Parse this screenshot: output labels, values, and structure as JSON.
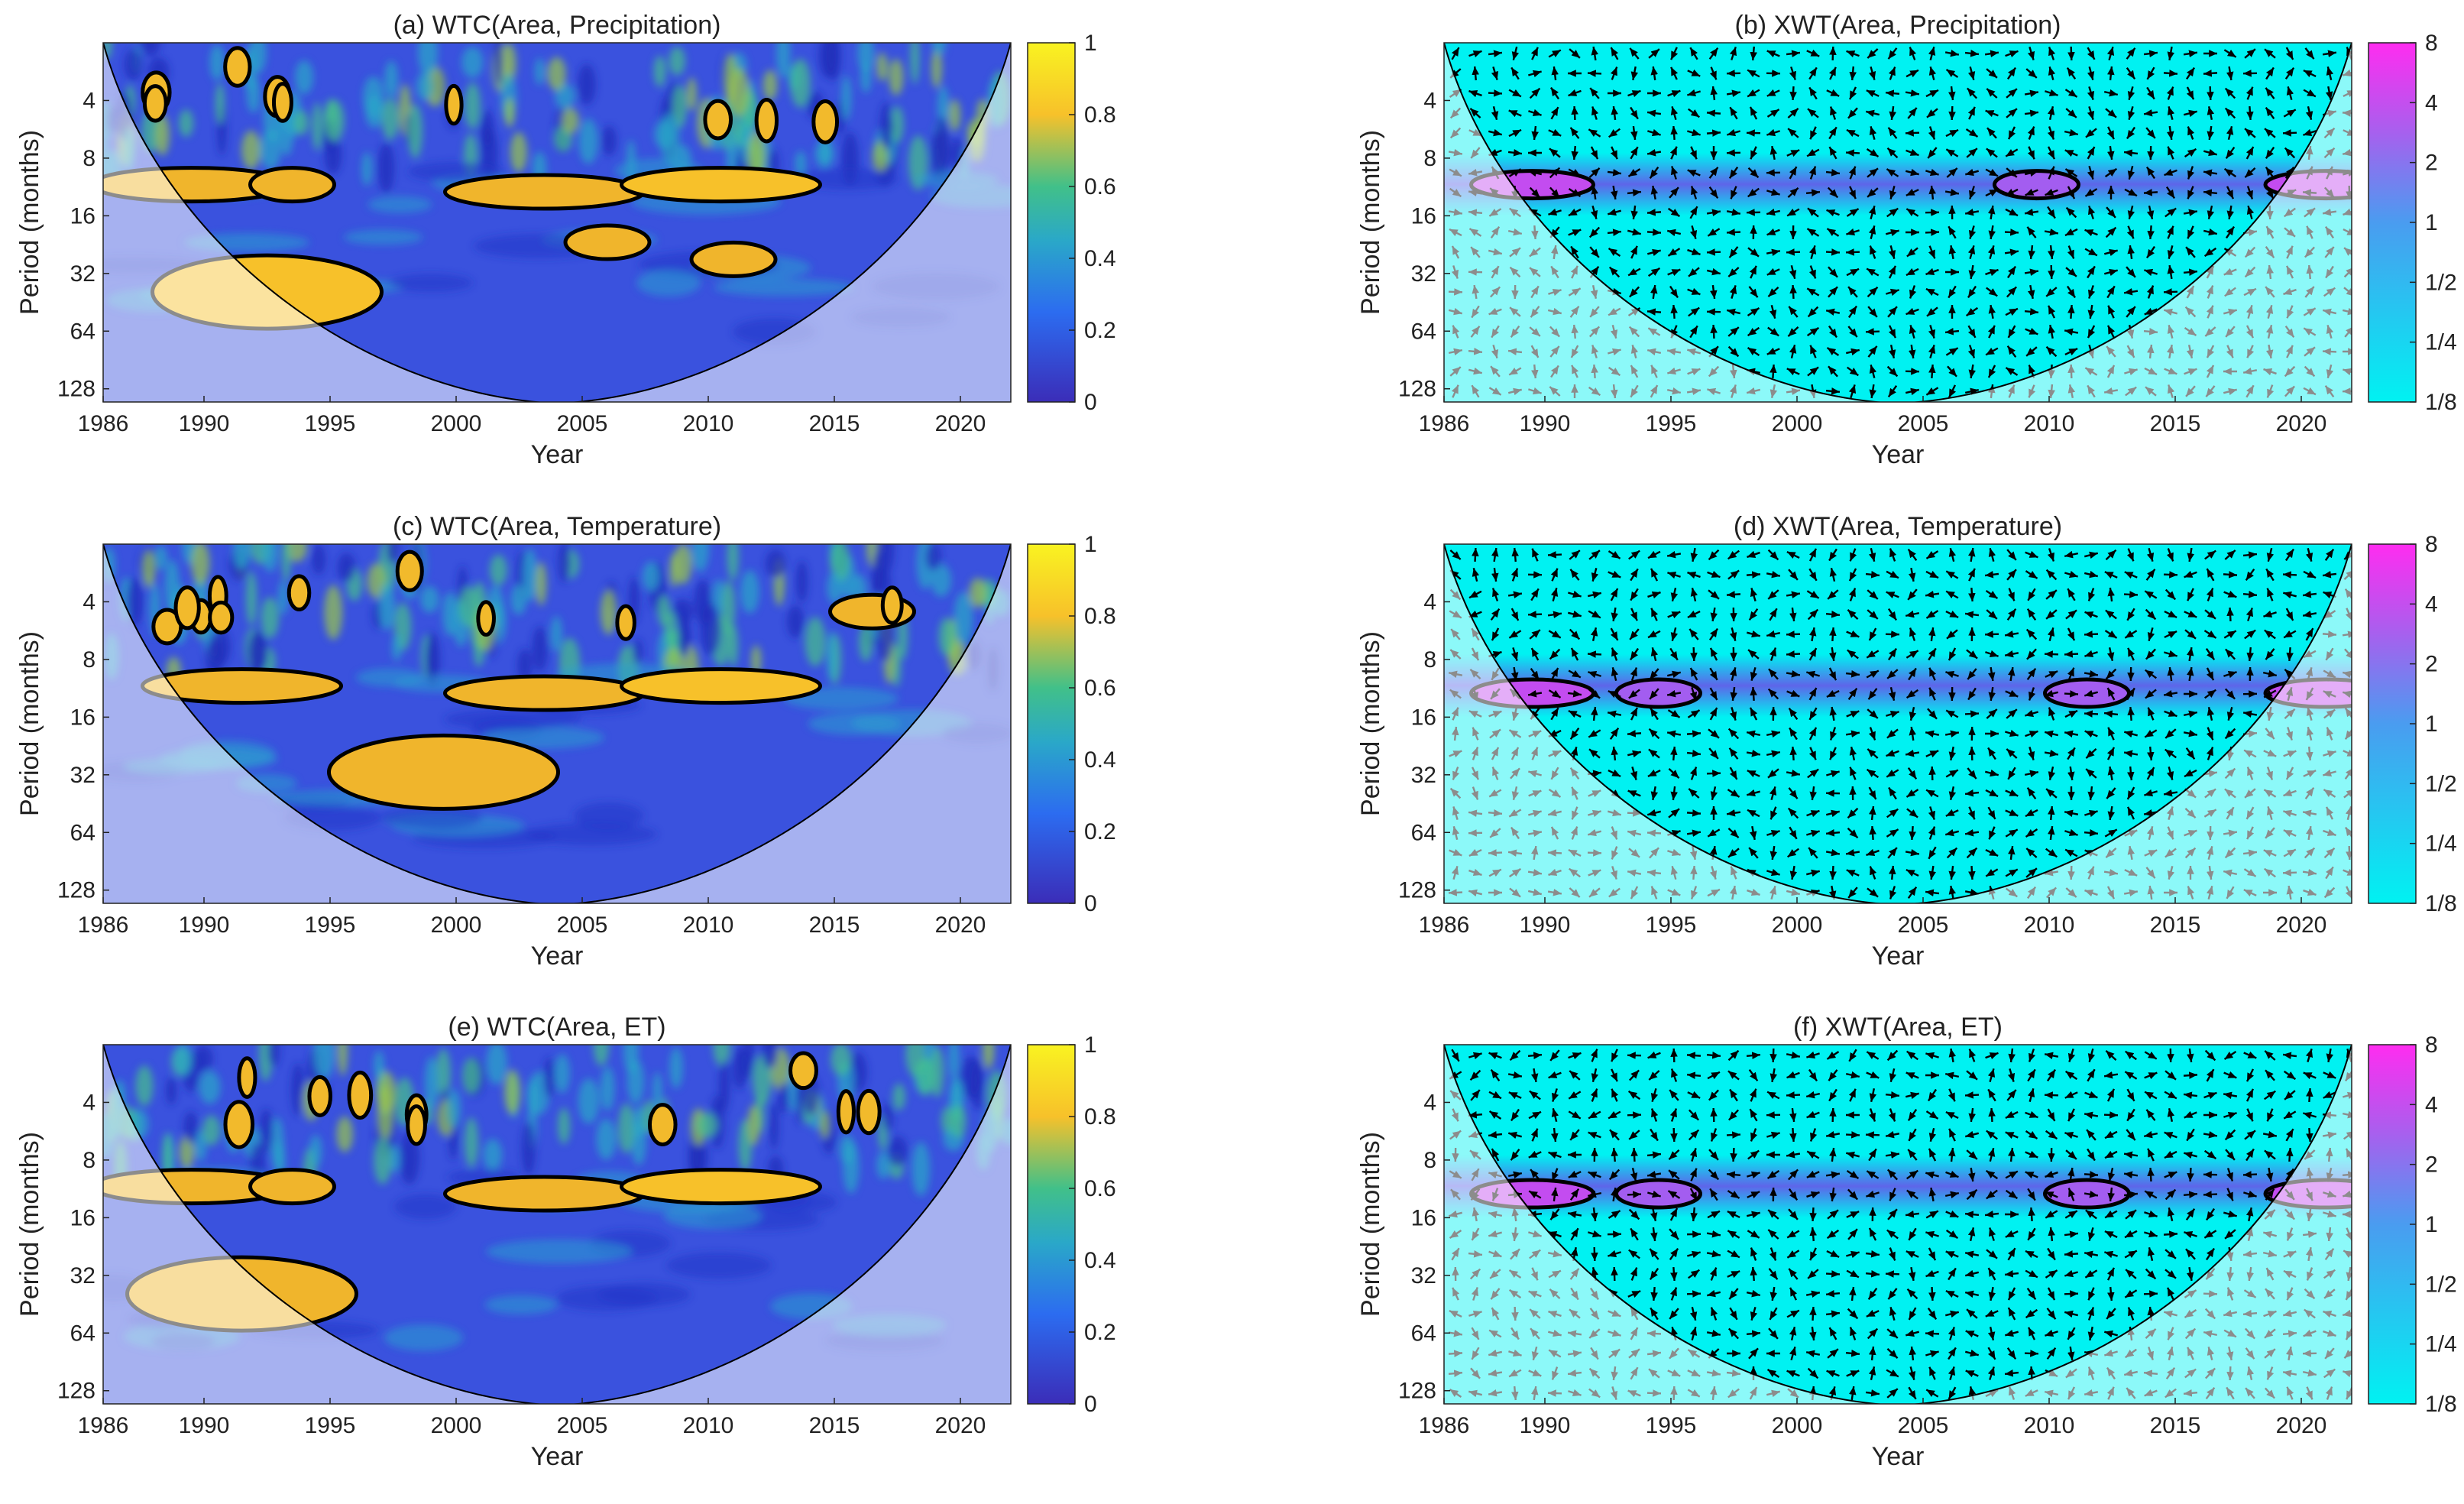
{
  "figure": {
    "x_ticks": [
      "1986",
      "1990",
      "1995",
      "2000",
      "2005",
      "2010",
      "2015",
      "2020"
    ],
    "y_ticks": [
      "4",
      "8",
      "16",
      "32",
      "64",
      "128"
    ],
    "xlabel": "Year",
    "ylabel": "Period (months)",
    "wtc_colorbar_ticks": [
      "0",
      "0.2",
      "0.4",
      "0.6",
      "0.8",
      "1"
    ],
    "xwt_colorbar_ticks": [
      "1/8",
      "1/4",
      "1/2",
      "1",
      "2",
      "4",
      "8"
    ]
  },
  "colors": {
    "wtc_low": "#3b2db8",
    "wtc_mid": "#2aa8c8",
    "wtc_high": "#f7c12a",
    "wtc_top": "#f9f321",
    "xwt_low": "#00f2f2",
    "xwt_high": "#ff2cf0",
    "contour": "#000000",
    "cone_shade": "#ffffff"
  },
  "chart_data": [
    {
      "type": "heatmap",
      "id": "a",
      "title": "(a) WTC(Area, Precipitation)",
      "metric": "wavelet coherence",
      "xlim": [
        1986,
        2022
      ],
      "ylim_period_months": [
        2,
        150
      ],
      "colorbar_range": [
        0,
        1
      ],
      "high_regions": [
        {
          "center_year": 1989.5,
          "period": 11,
          "level": 0.85
        },
        {
          "center_year": 1993.5,
          "period": 11,
          "level": 0.8
        },
        {
          "center_year": 2003.5,
          "period": 12,
          "level": 0.85
        },
        {
          "center_year": 2010.5,
          "period": 11,
          "level": 0.9
        },
        {
          "center_year": 1992.5,
          "period": 40,
          "level": 0.9
        },
        {
          "center_year": 2006,
          "period": 22,
          "level": 0.8
        },
        {
          "center_year": 2011,
          "period": 27,
          "level": 0.75
        }
      ]
    },
    {
      "type": "heatmap",
      "id": "b",
      "title": "(b) XWT(Area, Precipitation)",
      "metric": "cross-wavelet power",
      "xlim": [
        1986,
        2022
      ],
      "ylim_period_months": [
        2,
        150
      ],
      "colorbar_range": [
        "1/8",
        "8"
      ],
      "high_regions": [
        {
          "center_year": 1989.5,
          "period": 11,
          "level": 4
        },
        {
          "center_year": 2009.5,
          "period": 11,
          "level": 2
        },
        {
          "center_year": 2021,
          "period": 11,
          "level": 4
        }
      ]
    },
    {
      "type": "heatmap",
      "id": "c",
      "title": "(c) WTC(Area, Temperature)",
      "metric": "wavelet coherence",
      "xlim": [
        1986,
        2022
      ],
      "ylim_period_months": [
        2,
        150
      ],
      "colorbar_range": [
        0,
        1
      ],
      "high_regions": [
        {
          "center_year": 1991.5,
          "period": 11,
          "level": 0.85
        },
        {
          "center_year": 2003.5,
          "period": 12,
          "level": 0.85
        },
        {
          "center_year": 2010.5,
          "period": 11,
          "level": 0.9
        },
        {
          "center_year": 1999.5,
          "period": 31,
          "level": 0.75
        },
        {
          "center_year": 2016.5,
          "period": 4.5,
          "level": 0.8
        }
      ]
    },
    {
      "type": "heatmap",
      "id": "d",
      "title": "(d) XWT(Area, Temperature)",
      "metric": "cross-wavelet power",
      "xlim": [
        1986,
        2022
      ],
      "ylim_period_months": [
        2,
        150
      ],
      "colorbar_range": [
        "1/8",
        "8"
      ],
      "high_regions": [
        {
          "center_year": 1989.5,
          "period": 12,
          "level": 4
        },
        {
          "center_year": 1994.5,
          "period": 12,
          "level": 2
        },
        {
          "center_year": 2011.5,
          "period": 12,
          "level": 2
        },
        {
          "center_year": 2021,
          "period": 12,
          "level": 4
        }
      ]
    },
    {
      "type": "heatmap",
      "id": "e",
      "title": "(e) WTC(Area, ET)",
      "metric": "wavelet coherence",
      "xlim": [
        1986,
        2022
      ],
      "ylim_period_months": [
        2,
        150
      ],
      "colorbar_range": [
        0,
        1
      ],
      "high_regions": [
        {
          "center_year": 1989.5,
          "period": 11,
          "level": 0.85
        },
        {
          "center_year": 1993.5,
          "period": 11,
          "level": 0.8
        },
        {
          "center_year": 2003.5,
          "period": 12,
          "level": 0.85
        },
        {
          "center_year": 2010.5,
          "period": 11,
          "level": 0.9
        },
        {
          "center_year": 1991.5,
          "period": 40,
          "level": 0.8
        }
      ]
    },
    {
      "type": "heatmap",
      "id": "f",
      "title": "(f) XWT(Area, ET)",
      "metric": "cross-wavelet power",
      "xlim": [
        1986,
        2022
      ],
      "ylim_period_months": [
        2,
        150
      ],
      "colorbar_range": [
        "1/8",
        "8"
      ],
      "high_regions": [
        {
          "center_year": 1989.5,
          "period": 12,
          "level": 4
        },
        {
          "center_year": 1994.5,
          "period": 12,
          "level": 2
        },
        {
          "center_year": 2011.5,
          "period": 12,
          "level": 2
        },
        {
          "center_year": 2021,
          "period": 12,
          "level": 4
        }
      ]
    }
  ]
}
